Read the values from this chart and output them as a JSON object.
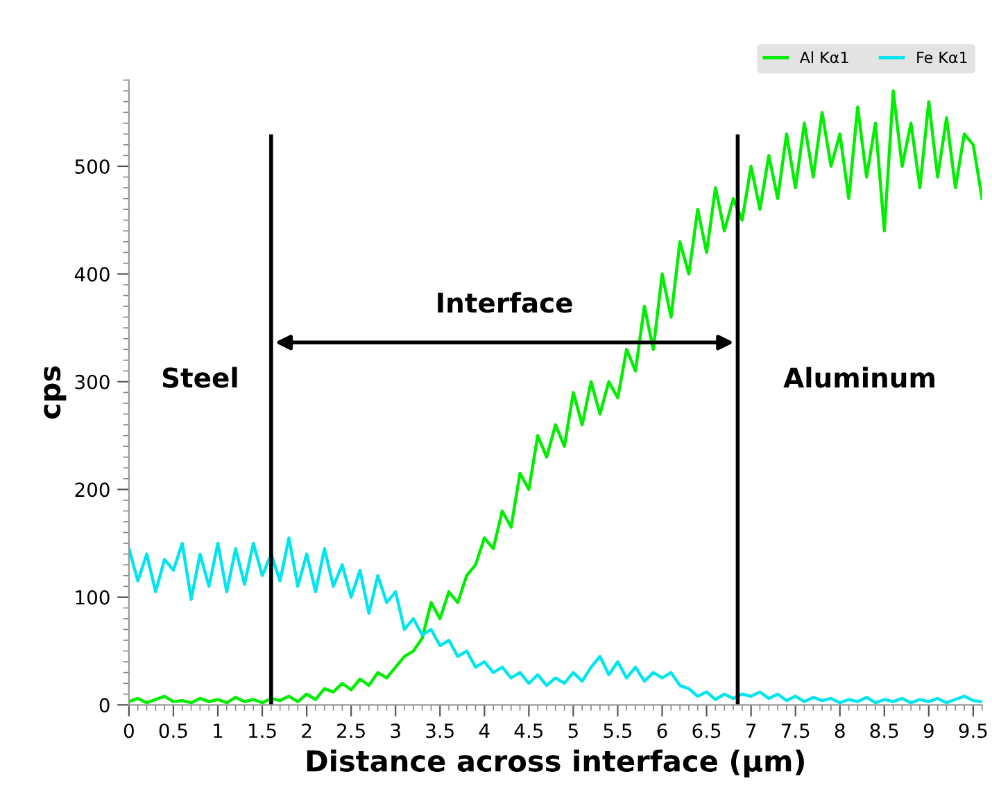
{
  "chart_data": {
    "type": "line",
    "xlabel": "Distance across interface (μm)",
    "ylabel": "cps",
    "x": [
      0,
      0.1,
      0.2,
      0.3,
      0.4,
      0.5,
      0.6,
      0.7,
      0.8,
      0.9,
      1.0,
      1.1,
      1.2,
      1.3,
      1.4,
      1.5,
      1.6,
      1.7,
      1.8,
      1.9,
      2.0,
      2.1,
      2.2,
      2.3,
      2.4,
      2.5,
      2.6,
      2.7,
      2.8,
      2.9,
      3.0,
      3.1,
      3.2,
      3.3,
      3.4,
      3.5,
      3.6,
      3.7,
      3.8,
      3.9,
      4.0,
      4.1,
      4.2,
      4.3,
      4.4,
      4.5,
      4.6,
      4.7,
      4.8,
      4.9,
      5.0,
      5.1,
      5.2,
      5.3,
      5.4,
      5.5,
      5.6,
      5.7,
      5.8,
      5.9,
      6.0,
      6.1,
      6.2,
      6.3,
      6.4,
      6.5,
      6.6,
      6.7,
      6.8,
      6.9,
      7.0,
      7.1,
      7.2,
      7.3,
      7.4,
      7.5,
      7.6,
      7.7,
      7.8,
      7.9,
      8.0,
      8.1,
      8.2,
      8.3,
      8.4,
      8.5,
      8.6,
      8.7,
      8.8,
      8.9,
      9.0,
      9.1,
      9.2,
      9.3,
      9.4,
      9.5,
      9.6
    ],
    "series": [
      {
        "name": "Al Kα1",
        "color": "#00ee00",
        "values": [
          3,
          6,
          2,
          5,
          8,
          3,
          4,
          2,
          6,
          3,
          5,
          2,
          7,
          3,
          5,
          2,
          6,
          4,
          8,
          3,
          10,
          5,
          15,
          12,
          20,
          14,
          24,
          18,
          30,
          25,
          35,
          45,
          50,
          62,
          95,
          80,
          105,
          95,
          120,
          130,
          155,
          145,
          180,
          165,
          215,
          200,
          250,
          230,
          260,
          240,
          290,
          260,
          300,
          270,
          300,
          285,
          330,
          310,
          370,
          330,
          400,
          360,
          430,
          400,
          460,
          420,
          480,
          440,
          470,
          450,
          500,
          460,
          510,
          470,
          530,
          480,
          540,
          490,
          550,
          500,
          530,
          470,
          555,
          490,
          540,
          440,
          570,
          500,
          540,
          480,
          560,
          490,
          545,
          480,
          530,
          520,
          470
        ]
      },
      {
        "name": "Fe Kα1",
        "color": "#00e5ee",
        "values": [
          145,
          115,
          140,
          105,
          135,
          125,
          150,
          98,
          140,
          110,
          150,
          105,
          145,
          112,
          150,
          120,
          140,
          115,
          155,
          110,
          140,
          105,
          145,
          110,
          130,
          100,
          125,
          85,
          120,
          95,
          105,
          70,
          80,
          65,
          70,
          55,
          60,
          45,
          50,
          35,
          40,
          30,
          35,
          25,
          30,
          20,
          28,
          18,
          25,
          20,
          30,
          22,
          35,
          45,
          28,
          40,
          25,
          35,
          22,
          30,
          25,
          30,
          18,
          15,
          8,
          12,
          5,
          10,
          6,
          10,
          8,
          12,
          6,
          10,
          4,
          8,
          3,
          7,
          4,
          6,
          2,
          5,
          3,
          7,
          2,
          5,
          3,
          6,
          2,
          5,
          3,
          6,
          2,
          5,
          8,
          4,
          3
        ]
      }
    ],
    "xlim": [
      0,
      9.6
    ],
    "ylim": [
      0,
      580
    ],
    "xticks": [
      0,
      0.5,
      1,
      1.5,
      2,
      2.5,
      3,
      3.5,
      4,
      4.5,
      5,
      5.5,
      6,
      6.5,
      7,
      7.5,
      8,
      8.5,
      9,
      9.5
    ],
    "yticks": [
      0,
      100,
      200,
      300,
      400,
      500
    ],
    "ref_lines": [
      {
        "axis": "x",
        "value": 1.6,
        "color": "#000000"
      },
      {
        "axis": "x",
        "value": 6.85,
        "color": "#000000"
      }
    ],
    "annotations": [
      "Steel",
      "Interface",
      "Aluminum"
    ],
    "legend": "top right",
    "grid": false
  }
}
